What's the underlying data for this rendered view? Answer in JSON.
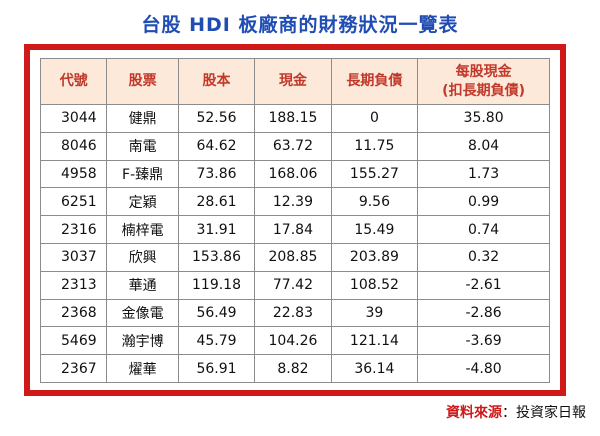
{
  "title": "台股 HDI 板廠商的財務狀況一覽表",
  "headers": [
    "代號",
    "股票",
    "股本",
    "現金",
    "長期負債",
    "每股現金\n(扣長期負債)"
  ],
  "rows": [
    [
      "3044",
      "健鼎",
      "52.56",
      "188.15",
      "0",
      "35.80"
    ],
    [
      "8046",
      "南電",
      "64.62",
      "63.72",
      "11.75",
      "8.04"
    ],
    [
      "4958",
      "F-臻鼎",
      "73.86",
      "168.06",
      "155.27",
      "1.73"
    ],
    [
      "6251",
      "定穎",
      "28.61",
      "12.39",
      "9.56",
      "0.99"
    ],
    [
      "2316",
      "楠梓電",
      "31.91",
      "17.84",
      "15.49",
      "0.74"
    ],
    [
      "3037",
      "欣興",
      "153.86",
      "208.85",
      "203.89",
      "0.32"
    ],
    [
      "2313",
      "華通",
      "119.18",
      "77.42",
      "108.52",
      "-2.61"
    ],
    [
      "2368",
      "金像電",
      "56.49",
      "22.83",
      "39",
      "-2.86"
    ],
    [
      "5469",
      "瀚宇博",
      "45.79",
      "104.26",
      "121.14",
      "-3.69"
    ],
    [
      "2367",
      "燿華",
      "56.91",
      "8.82",
      "36.14",
      "-4.80"
    ]
  ],
  "source": {
    "label": "資料來源",
    "sep": "：",
    "value": "投資家日報"
  }
}
